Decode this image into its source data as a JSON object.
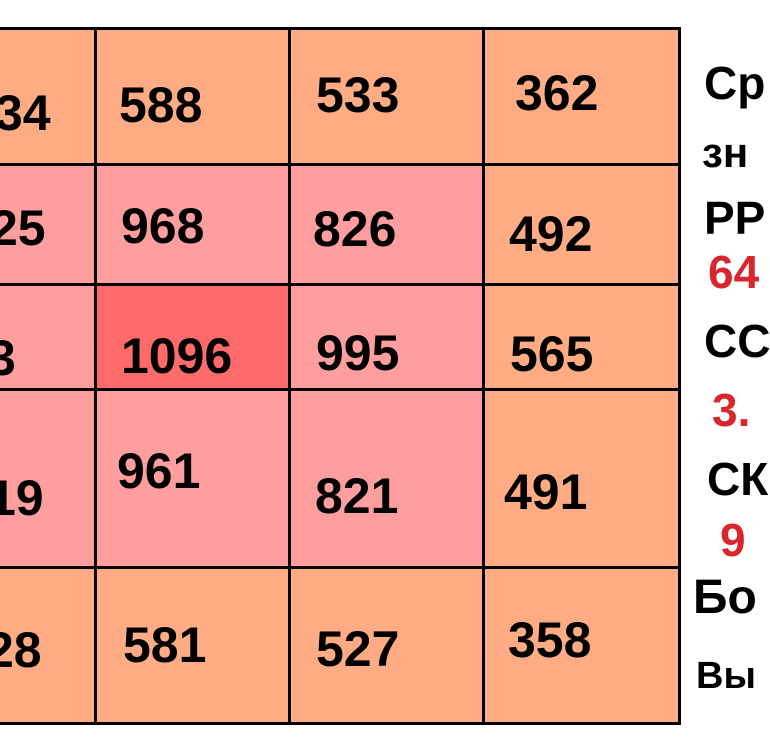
{
  "colors": {
    "outer": "#ffab84",
    "middle": "#ff9e9e",
    "center": "#ff6b6b",
    "border": "#000000",
    "accent_text": "#d8262c"
  },
  "grid": {
    "rows": [
      {
        "cells": [
          {
            "value": "34",
            "tone": "outer"
          },
          {
            "value": "588",
            "tone": "outer"
          },
          {
            "value": "533",
            "tone": "outer"
          },
          {
            "value": "362",
            "tone": "outer"
          }
        ]
      },
      {
        "cells": [
          {
            "value": "25",
            "tone": "middle"
          },
          {
            "value": "968",
            "tone": "middle"
          },
          {
            "value": "826",
            "tone": "middle"
          },
          {
            "value": "492",
            "tone": "outer"
          }
        ]
      },
      {
        "cells": [
          {
            "value": "3",
            "tone": "middle"
          },
          {
            "value": "1096",
            "tone": "center"
          },
          {
            "value": "995",
            "tone": "middle"
          },
          {
            "value": "565",
            "tone": "outer"
          }
        ]
      },
      {
        "cells": [
          {
            "value": "19",
            "tone": "middle"
          },
          {
            "value": "961",
            "tone": "middle"
          },
          {
            "value": "821",
            "tone": "middle"
          },
          {
            "value": "491",
            "tone": "outer"
          }
        ]
      },
      {
        "cells": [
          {
            "value": "28",
            "tone": "outer"
          },
          {
            "value": "581",
            "tone": "outer"
          },
          {
            "value": "527",
            "tone": "outer"
          },
          {
            "value": "358",
            "tone": "outer"
          }
        ]
      }
    ]
  },
  "side_panel": {
    "lines": [
      {
        "text": "Ср",
        "style": "black"
      },
      {
        "text": "зн",
        "style": "black"
      },
      {
        "text": "РР",
        "style": "black"
      },
      {
        "text": "64",
        "style": "red"
      },
      {
        "text": "СС",
        "style": "black"
      },
      {
        "text": "3.",
        "style": "red"
      },
      {
        "text": "СК",
        "style": "black"
      },
      {
        "text": "9",
        "style": "red"
      },
      {
        "text": "Бо",
        "style": "black"
      },
      {
        "text": "Вы",
        "style": "black"
      }
    ]
  }
}
